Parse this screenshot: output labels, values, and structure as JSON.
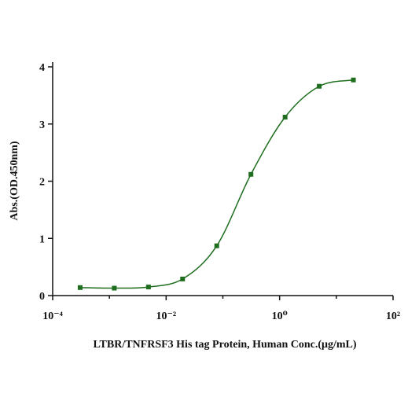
{
  "chart_data": {
    "type": "line",
    "x_label": "LTBR/TNFRSF3 His tag Protein, Human Conc.(μg/mL)",
    "y_label": "Abs.(OD.450nm)",
    "x": [
      0.000305,
      0.00122,
      0.00488,
      0.0195,
      0.078,
      0.3125,
      1.25,
      5,
      20
    ],
    "series": [
      {
        "name": "LTBR/TNFRSF3",
        "color": "#1f6e1f",
        "values": [
          0.14,
          0.13,
          0.15,
          0.29,
          0.87,
          2.12,
          3.12,
          3.66,
          3.77
        ]
      }
    ],
    "xlog": true,
    "xlim": [
      0.0001,
      100
    ],
    "xticks": [
      {
        "value": 0.0001,
        "label": "10⁻⁴"
      },
      {
        "value": 0.01,
        "label": "10⁻²"
      },
      {
        "value": 1,
        "label": "10⁰"
      },
      {
        "value": 100,
        "label": "10²"
      }
    ],
    "xminorticks": [
      0.001,
      0.1,
      10
    ],
    "ylim": [
      0,
      4
    ],
    "yticks": [
      0,
      1,
      2,
      3,
      4
    ]
  }
}
